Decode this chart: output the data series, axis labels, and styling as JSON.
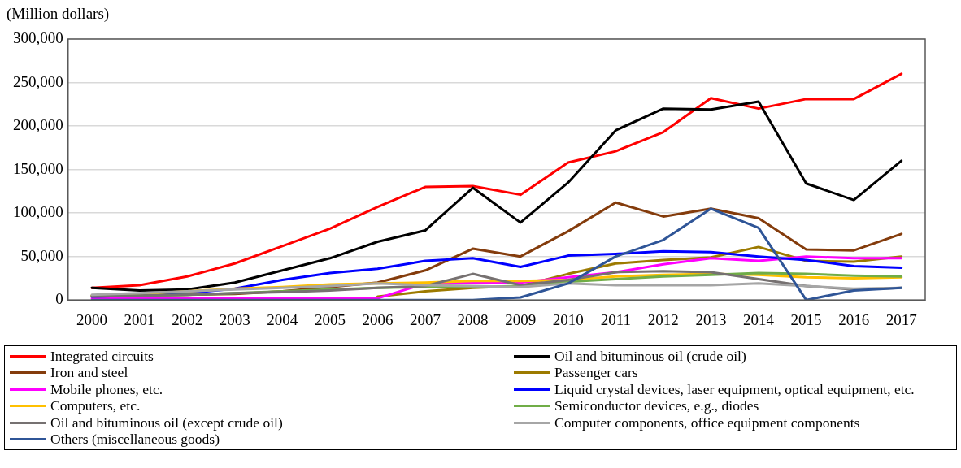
{
  "chart_data": {
    "type": "line",
    "ylabel": "(Million dollars)",
    "categories": [
      "2000",
      "2001",
      "2002",
      "2003",
      "2004",
      "2005",
      "2006",
      "2007",
      "2008",
      "2009",
      "2010",
      "2011",
      "2012",
      "2013",
      "2014",
      "2015",
      "2016",
      "2017"
    ],
    "ylim": [
      0,
      300000
    ],
    "yticks": [
      {
        "value": 0,
        "label": "0"
      },
      {
        "value": 50000,
        "label": "50,000"
      },
      {
        "value": 100000,
        "label": "100,000"
      },
      {
        "value": 150000,
        "label": "150,000"
      },
      {
        "value": 200000,
        "label": "200,000"
      },
      {
        "value": 250000,
        "label": "250,000"
      },
      {
        "value": 300000,
        "label": "300,000"
      }
    ],
    "grid": "y",
    "legend": "bottom",
    "marker": "none",
    "line_style": "solid",
    "series": [
      {
        "name": "Integrated circuits",
        "color": "#ff0000",
        "values": [
          14000,
          17000,
          27000,
          42000,
          62000,
          82000,
          107000,
          130000,
          131000,
          121000,
          158000,
          171000,
          193000,
          232000,
          220000,
          231000,
          231000,
          260000
        ]
      },
      {
        "name": "Oil and bituminous oil (crude oil)",
        "color": "#000000",
        "values": [
          14000,
          11000,
          12000,
          20000,
          34000,
          48000,
          67000,
          80000,
          129000,
          89000,
          135000,
          195000,
          220000,
          219000,
          228000,
          134000,
          115000,
          160000
        ]
      },
      {
        "name": "Iron and steel",
        "color": "#843c0c",
        "values": [
          5000,
          5000,
          6000,
          7000,
          10000,
          15000,
          20000,
          34000,
          59000,
          50000,
          79000,
          112000,
          96000,
          105000,
          94000,
          58000,
          57000,
          76000
        ]
      },
      {
        "name": "Passenger cars",
        "color": "#9c7a00",
        "values": [
          null,
          null,
          null,
          null,
          null,
          null,
          4000,
          10000,
          14000,
          16000,
          30000,
          42000,
          46000,
          49000,
          61000,
          45000,
          44000,
          50000
        ]
      },
      {
        "name": "Mobile phones, etc.",
        "color": "#ff00ff",
        "values": [
          2000,
          2000,
          2000,
          2000,
          2000,
          2000,
          2000,
          19000,
          20000,
          20000,
          26000,
          32000,
          41000,
          48000,
          45000,
          50000,
          48000,
          48000
        ]
      },
      {
        "name": "Liquid crystal devices, laser equipment, optical equipment, etc.",
        "color": "#0000ff",
        "values": [
          4000,
          5000,
          8000,
          13000,
          23000,
          31000,
          36000,
          45000,
          48000,
          38000,
          51000,
          53000,
          56000,
          55000,
          50000,
          46000,
          39000,
          37000
        ]
      },
      {
        "name": "Computers, etc.",
        "color": "#ffc000",
        "values": [
          5000,
          7000,
          10000,
          13000,
          15000,
          18000,
          19000,
          20000,
          22000,
          22000,
          23000,
          27000,
          29000,
          30000,
          29000,
          26000,
          25000,
          26000
        ]
      },
      {
        "name": "Semiconductor devices, e.g., diodes",
        "color": "#70ad47",
        "values": [
          5000,
          5000,
          6000,
          8000,
          10000,
          12000,
          14000,
          15000,
          15000,
          16000,
          21000,
          24000,
          27000,
          29000,
          31000,
          30000,
          28000,
          27000
        ]
      },
      {
        "name": "Oil and bituminous oil (except crude oil)",
        "color": "#767171",
        "values": [
          4000,
          5000,
          6000,
          8000,
          9000,
          11000,
          14000,
          16000,
          30000,
          17000,
          23000,
          32000,
          33000,
          32000,
          24000,
          16000,
          12000,
          14000
        ]
      },
      {
        "name": "Computer components, office equipment components",
        "color": "#a6a6a6",
        "values": [
          6000,
          8000,
          10000,
          12000,
          14000,
          16000,
          19000,
          17000,
          16000,
          15000,
          19000,
          17000,
          17000,
          17000,
          19000,
          16000,
          13000,
          14000
        ]
      },
      {
        "name": "Others (miscellaneous goods)",
        "color": "#2f5597",
        "values": [
          0,
          0,
          0,
          0,
          0,
          0,
          0,
          0,
          0,
          3000,
          19000,
          50000,
          69000,
          105000,
          83000,
          0,
          11000,
          14000
        ]
      }
    ]
  }
}
